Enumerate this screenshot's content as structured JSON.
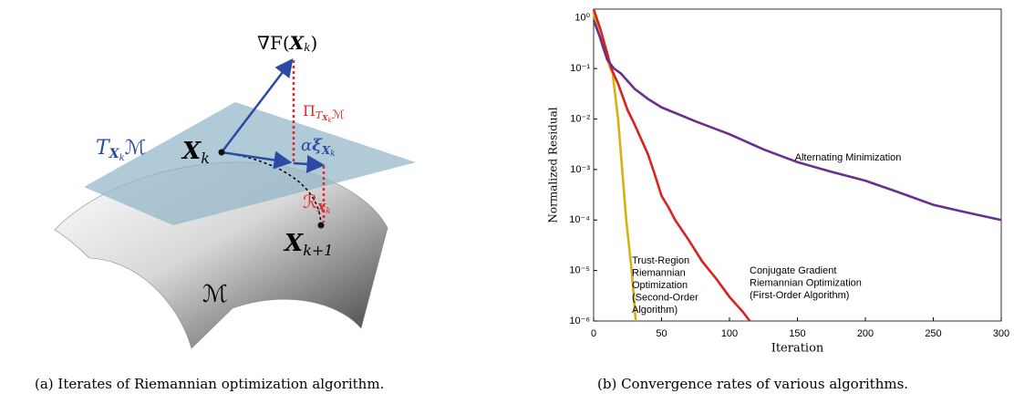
{
  "diagram": {
    "gradient": [
      "∇F(",
      "X",
      "k",
      ")"
    ],
    "tangent": [
      "T",
      "X",
      "k",
      "ℳ"
    ],
    "iterate": [
      "X",
      "k"
    ],
    "step": [
      "α",
      "ξ",
      "X",
      "k"
    ],
    "projection": [
      "Π",
      "T",
      "X",
      "k",
      "ℳ"
    ],
    "retraction": [
      "ℛ",
      "X",
      "k"
    ],
    "next": [
      "X",
      "k+1"
    ],
    "manifold": "ℳ",
    "caption": "(a) Iterates of Riemannian optimization algorithm."
  },
  "chart_data": {
    "type": "line",
    "caption": "(b) Convergence rates of various algorithms.",
    "xlabel": "Iteration",
    "ylabel": "Normalized Residual",
    "log_y": true,
    "xlim": [
      0,
      300
    ],
    "xticks": [
      0,
      50,
      100,
      150,
      200,
      250,
      300
    ],
    "ylim": [
      1e-06,
      1.5
    ],
    "yticks": [
      {
        "value": 1,
        "label": "10⁰"
      },
      {
        "value": 0.1,
        "label": "10⁻¹"
      },
      {
        "value": 0.01,
        "label": "10⁻²"
      },
      {
        "value": 0.001,
        "label": "10⁻³"
      },
      {
        "value": 0.0001,
        "label": "10⁻⁴"
      },
      {
        "value": 1e-05,
        "label": "10⁻⁵"
      },
      {
        "value": 1e-06,
        "label": "10⁻⁶"
      }
    ],
    "series": [
      {
        "name": [
          "Trust-Region",
          "Riemannian",
          "Optimization",
          "(Second-Order",
          "Algorithm)"
        ],
        "color": "#d4b20f",
        "x": [
          0,
          3,
          6,
          10,
          14,
          18,
          21,
          24,
          28,
          31
        ],
        "values": [
          1.3,
          0.6,
          0.3,
          0.15,
          0.08,
          0.01,
          0.001,
          0.0001,
          1e-05,
          1e-06
        ]
      },
      {
        "name": [
          "Conjugate Gradient",
          "Riemannian Optimization",
          "(First-Order Algorithm)"
        ],
        "color": "#d8231f",
        "x": [
          0,
          5,
          10,
          13,
          18,
          25,
          30,
          35,
          40,
          45,
          50,
          55,
          60,
          70,
          80,
          90,
          100,
          110,
          115
        ],
        "values": [
          1.5,
          0.6,
          0.2,
          0.1,
          0.05,
          0.015,
          0.008,
          0.004,
          0.002,
          0.0008,
          0.0003,
          0.00018,
          0.0001,
          4e-05,
          1.5e-05,
          7e-06,
          3e-06,
          1.5e-06,
          1e-06
        ]
      },
      {
        "name": [
          "Alternating Minimization"
        ],
        "color": "#6b2d8e",
        "x": [
          0,
          5,
          10,
          15,
          20,
          30,
          40,
          50,
          75,
          100,
          125,
          150,
          175,
          200,
          225,
          250,
          275,
          300
        ],
        "values": [
          0.9,
          0.4,
          0.15,
          0.1,
          0.08,
          0.04,
          0.025,
          0.017,
          0.009,
          0.005,
          0.0025,
          0.0014,
          0.0009,
          0.0006,
          0.00035,
          0.0002,
          0.00014,
          0.0001
        ]
      }
    ]
  }
}
